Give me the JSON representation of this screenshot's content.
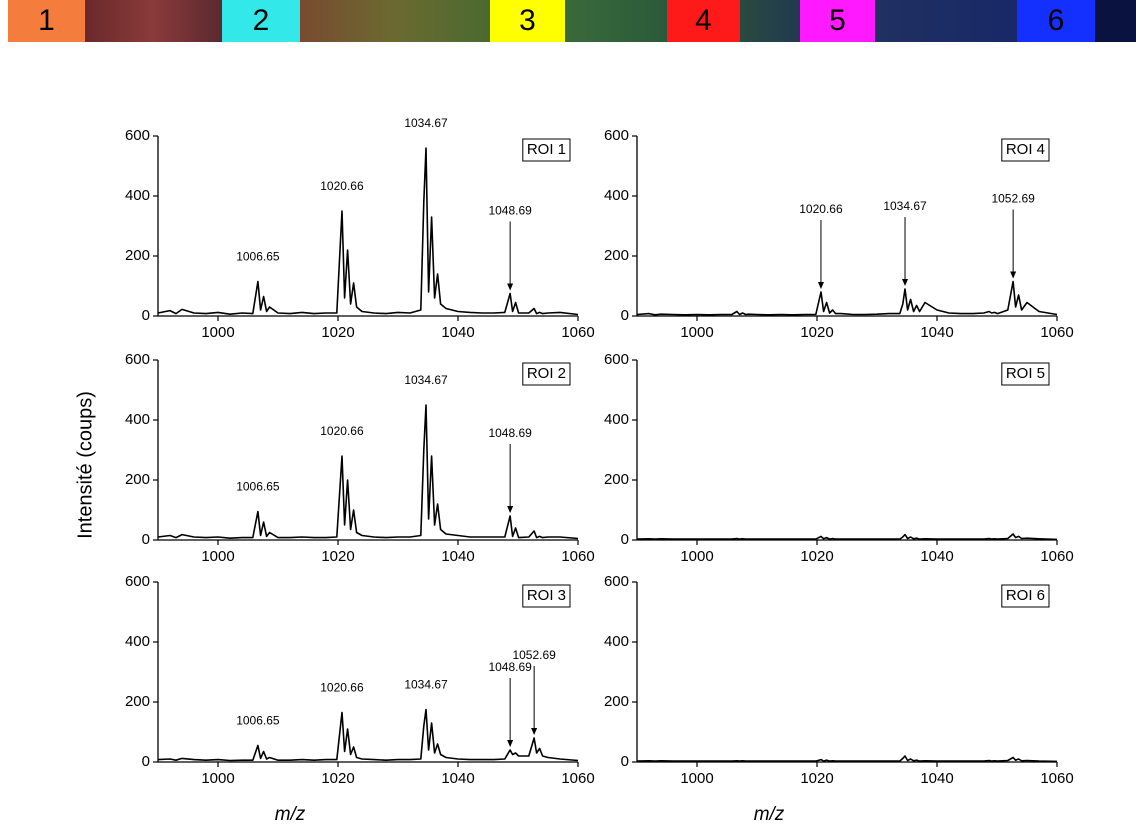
{
  "header": {
    "labels": [
      "1",
      "2",
      "3",
      "4",
      "5",
      "6"
    ],
    "colors": [
      "#f47c3c",
      "#33e8e8",
      "#ffff00",
      "#ff1a1a",
      "#ff19ff",
      "#1430ff"
    ],
    "text_colors": [
      "#000000",
      "#000000",
      "#000000",
      "#ffffff",
      "#000000",
      "#ffffff"
    ]
  },
  "figure": {
    "ylabel": "Intensité (coups)"
  },
  "chart_data": [
    {
      "type": "line",
      "title": "ROI 1",
      "xlim": [
        990,
        1060
      ],
      "xticks": [
        1000,
        1020,
        1040,
        1060
      ],
      "ylim": [
        0,
        600
      ],
      "yticks": [
        0,
        200,
        400,
        600
      ],
      "series": [
        {
          "name": "ROI 1",
          "color": "#000000",
          "x": [
            990,
            992,
            993,
            994,
            996,
            998,
            1000,
            1002,
            1004,
            1005.8,
            1006.65,
            1007.1,
            1007.6,
            1008.1,
            1008.6,
            1010,
            1012,
            1014,
            1016,
            1018,
            1019.8,
            1020.66,
            1021.1,
            1021.6,
            1022.1,
            1022.6,
            1023.1,
            1024,
            1026,
            1028,
            1030,
            1032,
            1033.8,
            1034.3,
            1034.67,
            1035.1,
            1035.6,
            1036.1,
            1036.6,
            1037.1,
            1038,
            1040,
            1042,
            1044,
            1046,
            1047.8,
            1048.69,
            1049.1,
            1049.6,
            1050.1,
            1051.8,
            1052.69,
            1053.1,
            1053.6,
            1054.1,
            1055,
            1057,
            1060
          ],
          "values": [
            10,
            18,
            8,
            22,
            10,
            8,
            12,
            6,
            10,
            8,
            115,
            20,
            65,
            15,
            30,
            10,
            8,
            12,
            8,
            10,
            10,
            350,
            60,
            220,
            40,
            110,
            30,
            15,
            10,
            8,
            12,
            10,
            20,
            380,
            560,
            80,
            330,
            60,
            140,
            40,
            25,
            15,
            12,
            10,
            10,
            12,
            75,
            15,
            45,
            10,
            10,
            25,
            8,
            12,
            8,
            10,
            12,
            5
          ]
        }
      ],
      "annotations": [
        {
          "text": "1006.65",
          "x": 1006.65,
          "arrow": false
        },
        {
          "text": "1020.66",
          "x": 1020.66,
          "arrow": false
        },
        {
          "text": "1034.67",
          "x": 1034.67,
          "arrow": false
        },
        {
          "text": "1048.69",
          "x": 1048.69,
          "arrow": true
        }
      ]
    },
    {
      "type": "line",
      "title": "ROI 2",
      "xlim": [
        990,
        1060
      ],
      "xticks": [
        1000,
        1020,
        1040,
        1060
      ],
      "ylim": [
        0,
        600
      ],
      "yticks": [
        0,
        200,
        400,
        600
      ],
      "series": [
        {
          "name": "ROI 2",
          "color": "#000000",
          "x": [
            990,
            992,
            993,
            994,
            996,
            998,
            1000,
            1002,
            1004,
            1005.8,
            1006.65,
            1007.1,
            1007.6,
            1008.1,
            1008.6,
            1010,
            1012,
            1014,
            1016,
            1018,
            1019.8,
            1020.66,
            1021.1,
            1021.6,
            1022.1,
            1022.6,
            1023.1,
            1024,
            1026,
            1028,
            1030,
            1032,
            1033.8,
            1034.3,
            1034.67,
            1035.1,
            1035.6,
            1036.1,
            1036.6,
            1037.1,
            1038,
            1040,
            1042,
            1044,
            1046,
            1047.8,
            1048.69,
            1049.1,
            1049.6,
            1050.1,
            1051.8,
            1052.69,
            1053.1,
            1053.6,
            1054.1,
            1055,
            1057,
            1060
          ],
          "values": [
            10,
            15,
            8,
            18,
            10,
            8,
            10,
            6,
            8,
            8,
            95,
            15,
            60,
            12,
            25,
            8,
            8,
            10,
            8,
            8,
            10,
            280,
            50,
            200,
            35,
            100,
            25,
            15,
            10,
            8,
            10,
            10,
            15,
            300,
            450,
            70,
            280,
            50,
            120,
            35,
            20,
            15,
            10,
            10,
            10,
            10,
            80,
            12,
            40,
            8,
            10,
            30,
            8,
            12,
            8,
            10,
            10,
            5
          ]
        }
      ],
      "annotations": [
        {
          "text": "1006.65",
          "x": 1006.65,
          "arrow": false
        },
        {
          "text": "1020.66",
          "x": 1020.66,
          "arrow": false
        },
        {
          "text": "1034.67",
          "x": 1034.67,
          "arrow": false
        },
        {
          "text": "1048.69",
          "x": 1048.69,
          "arrow": true
        }
      ]
    },
    {
      "type": "line",
      "title": "ROI 3",
      "xlim": [
        990,
        1060
      ],
      "xticks": [
        1000,
        1020,
        1040,
        1060
      ],
      "ylim": [
        0,
        600
      ],
      "yticks": [
        0,
        200,
        400,
        600
      ],
      "xlabel": "m/z",
      "series": [
        {
          "name": "ROI 3",
          "color": "#000000",
          "x": [
            990,
            992,
            993,
            994,
            996,
            998,
            1000,
            1002,
            1004,
            1005.8,
            1006.65,
            1007.1,
            1007.6,
            1008.1,
            1008.6,
            1010,
            1012,
            1014,
            1016,
            1018,
            1019.8,
            1020.66,
            1021.1,
            1021.6,
            1022.1,
            1022.6,
            1023.1,
            1024,
            1026,
            1028,
            1030,
            1032,
            1033.8,
            1034.3,
            1034.67,
            1035.1,
            1035.6,
            1036.1,
            1036.6,
            1037.1,
            1038,
            1040,
            1042,
            1044,
            1046,
            1047.8,
            1048.69,
            1049.1,
            1049.6,
            1050.1,
            1051.8,
            1052.69,
            1053.1,
            1053.6,
            1054.1,
            1055,
            1057,
            1060
          ],
          "values": [
            8,
            10,
            6,
            12,
            8,
            6,
            8,
            5,
            6,
            6,
            55,
            12,
            35,
            10,
            15,
            6,
            6,
            8,
            6,
            8,
            8,
            165,
            35,
            110,
            25,
            50,
            15,
            10,
            8,
            6,
            8,
            8,
            10,
            120,
            175,
            40,
            130,
            30,
            60,
            25,
            15,
            10,
            8,
            8,
            8,
            10,
            40,
            25,
            30,
            20,
            20,
            80,
            30,
            45,
            20,
            15,
            10,
            5
          ]
        }
      ],
      "annotations": [
        {
          "text": "1006.65",
          "x": 1006.65,
          "arrow": false
        },
        {
          "text": "1020.66",
          "x": 1020.66,
          "arrow": false
        },
        {
          "text": "1034.67",
          "x": 1034.67,
          "arrow": false
        },
        {
          "text": "1048.69",
          "x": 1048.69,
          "arrow": true
        },
        {
          "text": "1052.69",
          "x": 1052.69,
          "arrow": true
        }
      ]
    },
    {
      "type": "line",
      "title": "ROI 4",
      "xlim": [
        990,
        1060
      ],
      "xticks": [
        1000,
        1020,
        1040,
        1060
      ],
      "ylim": [
        0,
        600
      ],
      "yticks": [
        0,
        200,
        400,
        600
      ],
      "series": [
        {
          "name": "ROI 4",
          "color": "#000000",
          "x": [
            990,
            992,
            993,
            994,
            996,
            998,
            1000,
            1002,
            1004,
            1005.8,
            1006.65,
            1007.1,
            1007.6,
            1008.1,
            1008.6,
            1010,
            1012,
            1014,
            1016,
            1018,
            1019.8,
            1020.66,
            1021.1,
            1021.6,
            1022.1,
            1022.6,
            1023.1,
            1024,
            1026,
            1028,
            1030,
            1032,
            1033.8,
            1034.3,
            1034.67,
            1035.1,
            1035.6,
            1036.1,
            1036.6,
            1037.1,
            1038,
            1040,
            1042,
            1044,
            1046,
            1047.8,
            1048.69,
            1049.1,
            1049.6,
            1050.1,
            1051.8,
            1052.69,
            1053.1,
            1053.6,
            1054.1,
            1055,
            1057,
            1060
          ],
          "values": [
            5,
            8,
            4,
            6,
            5,
            4,
            5,
            4,
            5,
            5,
            15,
            5,
            10,
            5,
            6,
            5,
            4,
            5,
            4,
            5,
            5,
            80,
            15,
            45,
            10,
            20,
            8,
            8,
            5,
            5,
            6,
            8,
            8,
            40,
            90,
            20,
            55,
            15,
            35,
            15,
            45,
            20,
            10,
            8,
            8,
            10,
            15,
            10,
            12,
            8,
            20,
            115,
            30,
            70,
            20,
            45,
            15,
            5
          ]
        }
      ],
      "annotations": [
        {
          "text": "1020.66",
          "x": 1020.66,
          "arrow": true
        },
        {
          "text": "1034.67",
          "x": 1034.67,
          "arrow": true
        },
        {
          "text": "1052.69",
          "x": 1052.69,
          "arrow": true
        }
      ]
    },
    {
      "type": "line",
      "title": "ROI 5",
      "xlim": [
        990,
        1060
      ],
      "xticks": [
        1000,
        1020,
        1040,
        1060
      ],
      "ylim": [
        0,
        600
      ],
      "yticks": [
        0,
        200,
        400,
        600
      ],
      "series": [
        {
          "name": "ROI 5",
          "color": "#000000",
          "x": [
            990,
            992,
            993,
            994,
            996,
            998,
            1000,
            1002,
            1004,
            1005.8,
            1006.65,
            1007.1,
            1007.6,
            1008.1,
            1008.6,
            1010,
            1012,
            1014,
            1016,
            1018,
            1019.8,
            1020.66,
            1021.1,
            1021.6,
            1022.1,
            1022.6,
            1023.1,
            1024,
            1026,
            1028,
            1030,
            1032,
            1033.8,
            1034.3,
            1034.67,
            1035.1,
            1035.6,
            1036.1,
            1036.6,
            1037.1,
            1038,
            1040,
            1042,
            1044,
            1046,
            1047.8,
            1048.69,
            1049.1,
            1049.6,
            1050.1,
            1051.8,
            1052.69,
            1053.1,
            1053.6,
            1054.1,
            1055,
            1057,
            1060
          ],
          "values": [
            3,
            4,
            3,
            4,
            3,
            3,
            3,
            3,
            3,
            3,
            5,
            3,
            4,
            3,
            3,
            3,
            3,
            3,
            3,
            3,
            3,
            12,
            4,
            8,
            3,
            5,
            3,
            3,
            3,
            3,
            3,
            3,
            3,
            10,
            18,
            5,
            10,
            4,
            6,
            3,
            4,
            3,
            3,
            3,
            3,
            3,
            5,
            3,
            4,
            3,
            5,
            20,
            8,
            12,
            5,
            6,
            4,
            2
          ]
        }
      ],
      "annotations": []
    },
    {
      "type": "line",
      "title": "ROI 6",
      "xlim": [
        990,
        1060
      ],
      "xticks": [
        1000,
        1020,
        1040,
        1060
      ],
      "ylim": [
        0,
        600
      ],
      "yticks": [
        0,
        200,
        400,
        600
      ],
      "xlabel": "m/z",
      "series": [
        {
          "name": "ROI 6",
          "color": "#000000",
          "x": [
            990,
            992,
            993,
            994,
            996,
            998,
            1000,
            1002,
            1004,
            1005.8,
            1006.65,
            1007.1,
            1007.6,
            1008.1,
            1008.6,
            1010,
            1012,
            1014,
            1016,
            1018,
            1019.8,
            1020.66,
            1021.1,
            1021.6,
            1022.1,
            1022.6,
            1023.1,
            1024,
            1026,
            1028,
            1030,
            1032,
            1033.8,
            1034.3,
            1034.67,
            1035.1,
            1035.6,
            1036.1,
            1036.6,
            1037.1,
            1038,
            1040,
            1042,
            1044,
            1046,
            1047.8,
            1048.69,
            1049.1,
            1049.6,
            1050.1,
            1051.8,
            1052.69,
            1053.1,
            1053.6,
            1054.1,
            1055,
            1057,
            1060
          ],
          "values": [
            3,
            4,
            3,
            4,
            3,
            3,
            3,
            3,
            3,
            3,
            4,
            3,
            4,
            3,
            3,
            3,
            3,
            3,
            3,
            3,
            3,
            8,
            3,
            6,
            3,
            4,
            3,
            3,
            3,
            3,
            3,
            3,
            3,
            12,
            20,
            5,
            10,
            4,
            6,
            3,
            4,
            3,
            3,
            3,
            3,
            3,
            5,
            3,
            4,
            3,
            5,
            15,
            6,
            10,
            4,
            5,
            3,
            2
          ]
        }
      ],
      "annotations": []
    }
  ]
}
